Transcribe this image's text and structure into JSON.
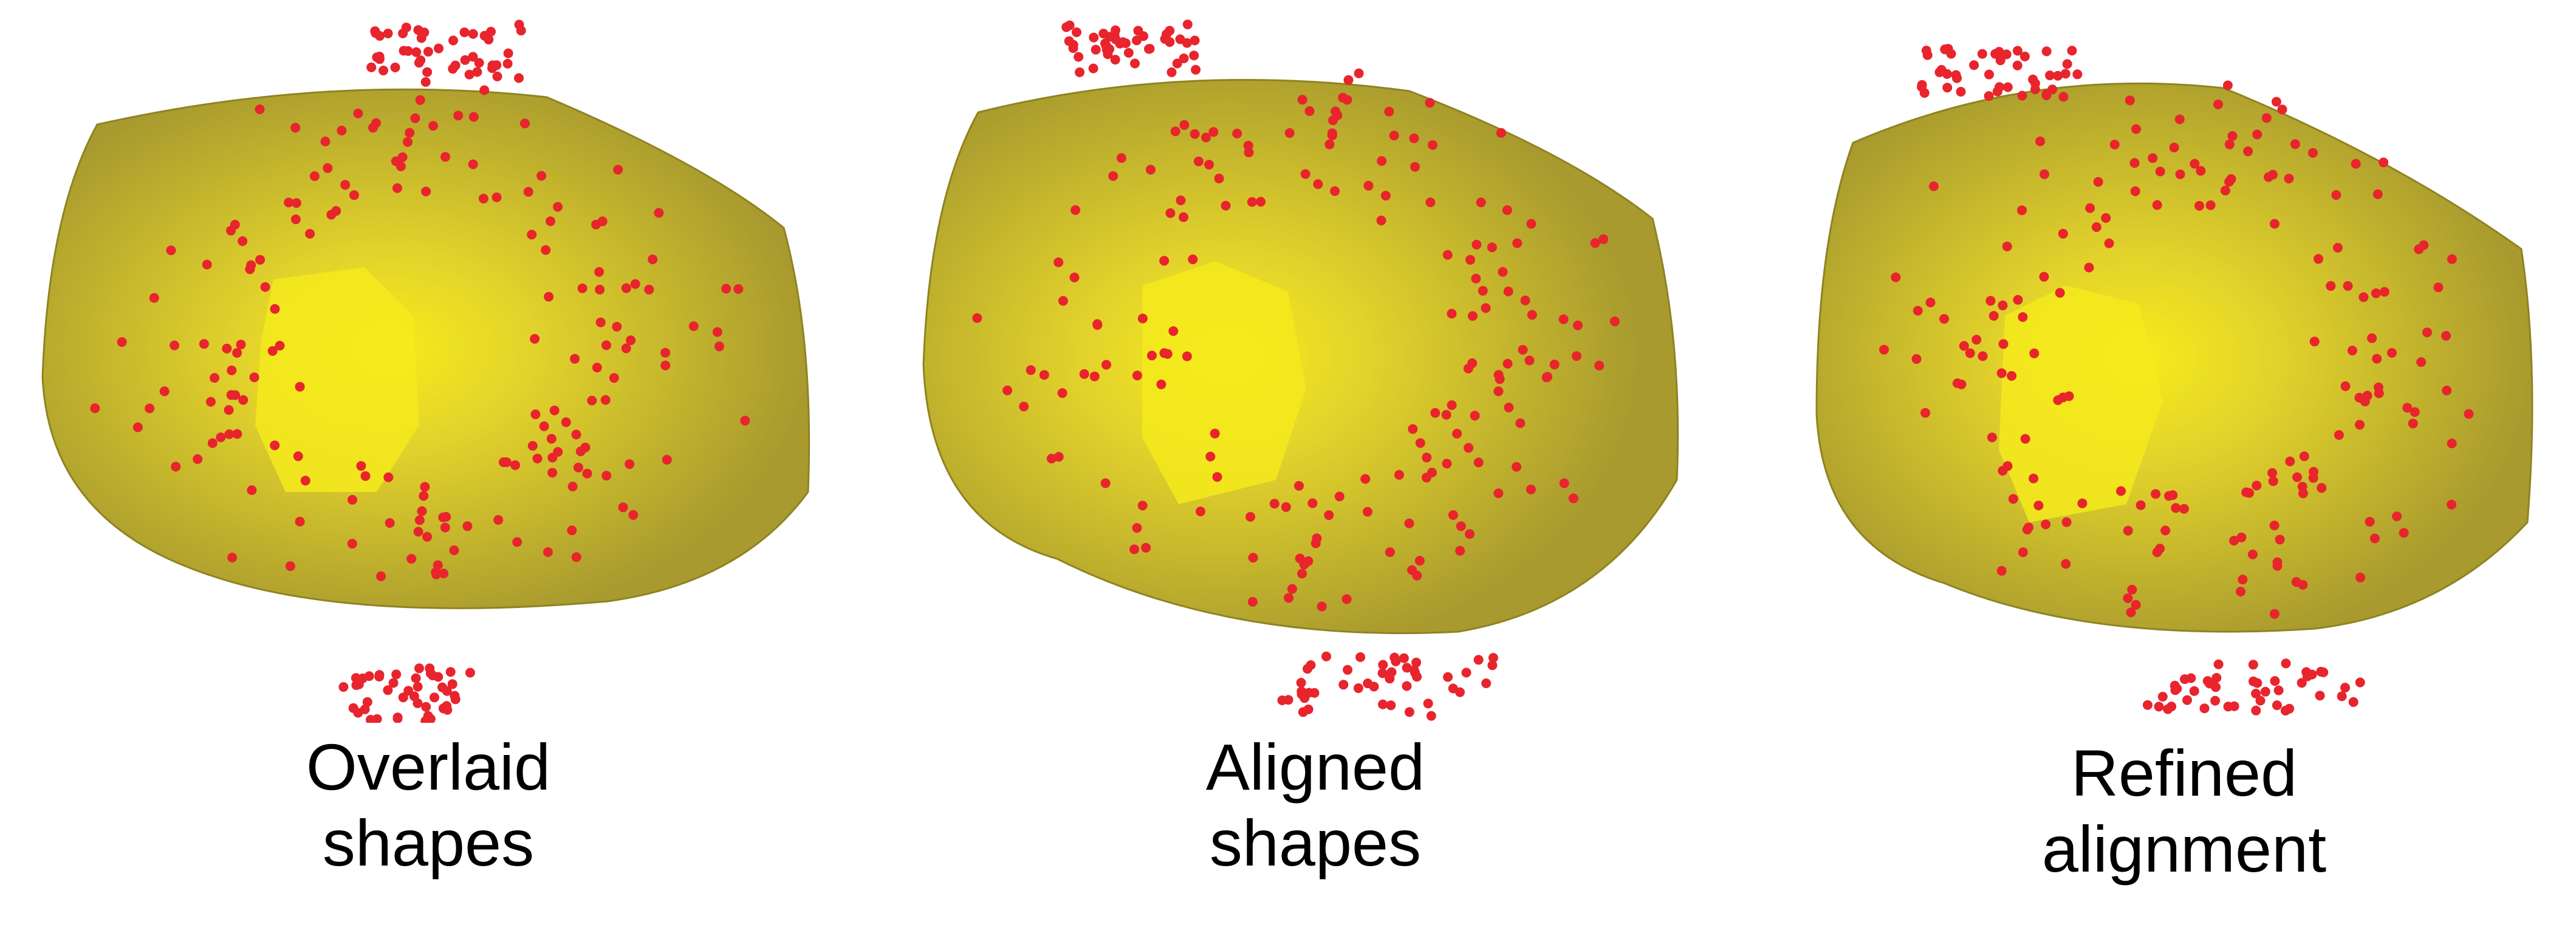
{
  "panels": [
    {
      "id": "overlaid",
      "caption_line1": "Overlaid",
      "caption_line2": "shapes"
    },
    {
      "id": "aligned",
      "caption_line1": "Aligned",
      "caption_line2": "shapes"
    },
    {
      "id": "refined",
      "caption_line1": "Refined",
      "caption_line2": "alignment"
    }
  ],
  "colors": {
    "mesh_base": "#a99a2c",
    "mesh_light": "#e4d52e",
    "mesh_highlight": "#f4ea1c",
    "point_color": "#e8242d"
  }
}
